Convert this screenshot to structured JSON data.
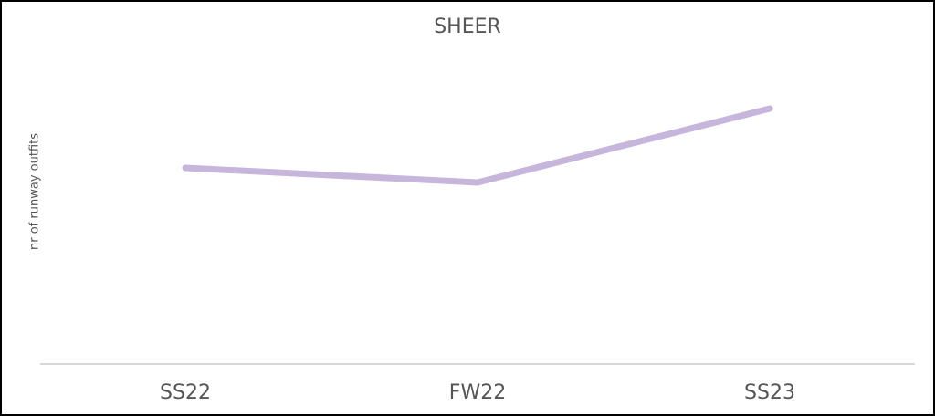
{
  "chart_data": {
    "type": "line",
    "title": "SHEER",
    "y_label": "nr of runway outfits",
    "categories": [
      "SS22",
      "FW22",
      "SS23"
    ],
    "values": [
      215,
      199,
      280
    ],
    "color": "#c6b6dc",
    "ylim": [
      0,
      350
    ],
    "grid": false
  }
}
